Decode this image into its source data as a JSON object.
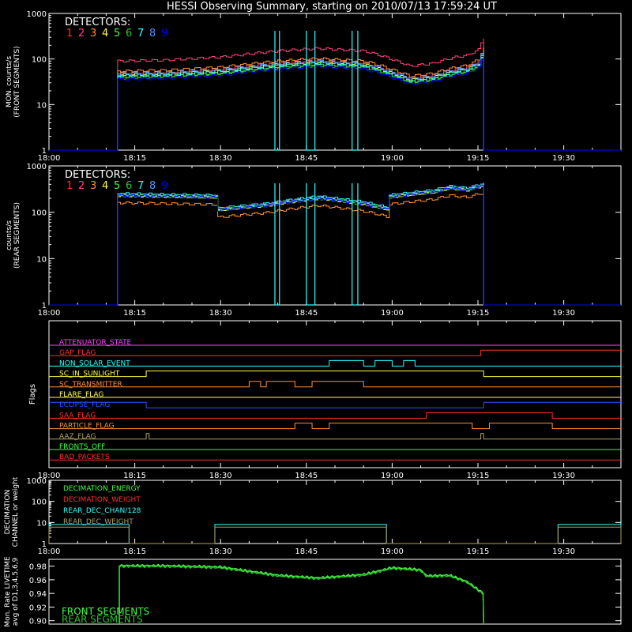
{
  "title": "HESSI Observing Summary, starting on 2010/07/13 17:59:24 UT",
  "colors": {
    "det": [
      "#ff3030",
      "#ff4080",
      "#ff9030",
      "#ffff40",
      "#40ff40",
      "#30c030",
      "#30ffff",
      "#5090ff",
      "#0000ff"
    ],
    "frame": "#ffffff"
  },
  "time_ticks": [
    "18:00",
    "18:15",
    "18:30",
    "18:45",
    "19:00",
    "19:15",
    "19:30"
  ],
  "chart_data": [
    {
      "type": "line",
      "ylabel": [
        "MON. counts/s",
        "(FRONT SEGMENTS)"
      ],
      "ylog": true,
      "ylim": [
        1,
        1000
      ],
      "yticks": [
        "1",
        "10",
        "100",
        "1000"
      ],
      "legend_title": "DETECTORS:",
      "legend": [
        "1",
        "2",
        "3",
        "4",
        "5",
        "6",
        "7",
        "8",
        "9"
      ],
      "x_minutes": [
        12,
        20,
        30,
        40,
        47,
        55,
        60,
        63,
        67,
        71,
        73,
        75,
        76
      ],
      "series_base": [
        45,
        47,
        55,
        75,
        85,
        75,
        48,
        35,
        40,
        55,
        60,
        80,
        150
      ],
      "detector_factors": [
        1.1,
        2.0,
        1.2,
        1.0,
        0.9,
        0.85,
        0.95,
        1.05,
        0.8
      ],
      "cyan_dropouts": [
        [
          39.5,
          39.8,
          40.3
        ],
        [
          45,
          46.5
        ],
        [
          53,
          54
        ]
      ]
    },
    {
      "type": "line",
      "ylabel": [
        "counts/s",
        "(REAR SEGMENTS)"
      ],
      "ylog": true,
      "ylim": [
        1,
        1000
      ],
      "yticks": [
        "1",
        "10",
        "100",
        "1000"
      ],
      "legend_title": "DETECTORS:",
      "legend": [
        "1",
        "2",
        "3",
        "4",
        "5",
        "6",
        "7",
        "8",
        "9"
      ],
      "x_minutes": [
        12,
        20,
        29,
        29.2,
        38,
        47,
        55,
        59,
        59.2,
        63,
        67,
        70,
        73,
        76
      ],
      "series_base": [
        230,
        220,
        210,
        110,
        140,
        200,
        150,
        115,
        210,
        240,
        270,
        330,
        300,
        380
      ],
      "detector_factors": [
        1.05,
        1.0,
        0.7,
        1.0,
        1.05,
        1.0,
        1.1,
        1.05,
        1.0
      ],
      "cyan_dropouts": [
        [
          39.5,
          39.8,
          40.3
        ],
        [
          45,
          46.5
        ],
        [
          53,
          54
        ]
      ]
    },
    {
      "type": "table",
      "ylabel": "Flags",
      "flags": [
        {
          "name": "ATTENUATOR_STATE",
          "color": "#ff40ff"
        },
        {
          "name": "GAP_FLAG",
          "color": "#ff3030"
        },
        {
          "name": "NON_SOLAR_EVENT",
          "color": "#30ffff"
        },
        {
          "name": "SC_IN_SUNLIGHT",
          "color": "#ffff40"
        },
        {
          "name": "SC_TRANSMITTER",
          "color": "#ff9030"
        },
        {
          "name": "FLARE_FLAG",
          "color": "#ffff40"
        },
        {
          "name": "ECLIPSE_FLAG",
          "color": "#3050ff"
        },
        {
          "name": "SAA_FLAG",
          "color": "#ff3030"
        },
        {
          "name": "PARTICLE_FLAG",
          "color": "#ff9030"
        },
        {
          "name": "AAZ_FLAG",
          "color": "#b0a060"
        },
        {
          "name": "FRONTS_OFF",
          "color": "#40ff40"
        },
        {
          "name": "BAD_PACKETS",
          "color": "#ff3030"
        }
      ]
    },
    {
      "type": "line",
      "ylabel": [
        "DECIMATION",
        "CHANNEL or weight"
      ],
      "ylog": true,
      "ylim": [
        1,
        1000
      ],
      "yticks": [
        "1",
        "10",
        "100",
        "1000"
      ],
      "legend": [
        {
          "name": "DECIMATION_ENERGY",
          "color": "#40ff40"
        },
        {
          "name": "DECIMATION_WEIGHT",
          "color": "#ff3030"
        },
        {
          "name": "REAR_DEC_CHAN/128",
          "color": "#30ffff"
        },
        {
          "name": "REAR_DEC_WEIGHT",
          "color": "#b0a060"
        }
      ]
    },
    {
      "type": "line",
      "ylabel": [
        "Mon. Rate LIVETIME",
        "avg of D1,3,4,5,6,9"
      ],
      "ylim": [
        0.895,
        0.99
      ],
      "yticks": [
        "0.90",
        "0.92",
        "0.94",
        "0.96",
        "0.98"
      ],
      "legend": [
        {
          "name": "FRONT SEGMENTS",
          "color": "#40ff40"
        },
        {
          "name": "REAR SEGMENTS",
          "color": "#30c030"
        }
      ]
    }
  ]
}
